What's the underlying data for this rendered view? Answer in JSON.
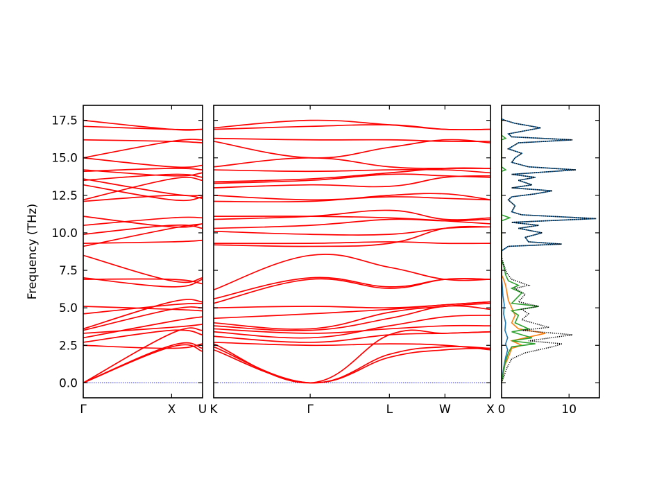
{
  "chart_data": {
    "type": "line",
    "ylabel": "Frequency (THz)",
    "ylim": [
      -1.0,
      18.5
    ],
    "yticks": [
      "0.0",
      "2.5",
      "5.0",
      "7.5",
      "10.0",
      "12.5",
      "15.0",
      "17.5"
    ],
    "ytick_values": [
      0.0,
      2.5,
      5.0,
      7.5,
      10.0,
      12.5,
      15.0,
      17.5
    ],
    "band_segments": [
      {
        "path_labels": [
          "Γ",
          "X",
          "U"
        ],
        "nodes": [
          0,
          1,
          1.35
        ],
        "bands": [
          [
            0.0,
            2.4,
            2.1
          ],
          [
            0.0,
            2.5,
            2.3
          ],
          [
            0.0,
            3.3,
            3.5
          ],
          [
            2.5,
            2.3,
            2.6
          ],
          [
            2.7,
            3.5,
            3.2
          ],
          [
            3.0,
            4.1,
            4.4
          ],
          [
            3.3,
            3.7,
            3.9
          ],
          [
            3.5,
            4.9,
            5.0
          ],
          [
            3.6,
            5.4,
            5.4
          ],
          [
            4.6,
            5.2,
            5.3
          ],
          [
            5.1,
            4.9,
            4.8
          ],
          [
            6.9,
            6.9,
            6.6
          ],
          [
            7.0,
            6.4,
            6.9
          ],
          [
            8.5,
            6.8,
            7.0
          ],
          [
            9.1,
            10.3,
            10.6
          ],
          [
            9.3,
            9.4,
            9.5
          ],
          [
            9.9,
            10.5,
            10.3
          ],
          [
            10.5,
            11.0,
            11.0
          ],
          [
            11.1,
            10.4,
            10.6
          ],
          [
            12.1,
            12.5,
            12.3
          ],
          [
            12.2,
            13.6,
            13.5
          ],
          [
            13.2,
            12.2,
            12.4
          ],
          [
            13.5,
            13.9,
            13.7
          ],
          [
            13.6,
            12.6,
            12.5
          ],
          [
            14.1,
            14.3,
            14.2
          ],
          [
            14.2,
            13.8,
            14.0
          ],
          [
            15.0,
            14.4,
            14.5
          ],
          [
            15.0,
            16.1,
            16.2
          ],
          [
            16.2,
            16.1,
            16.0
          ],
          [
            17.1,
            16.9,
            16.9
          ],
          [
            17.5,
            16.9,
            16.9
          ]
        ]
      },
      {
        "path_labels": [
          "K",
          "Γ",
          "L",
          "W",
          "X"
        ],
        "nodes": [
          0,
          1.06,
          1.93,
          2.54,
          3.04
        ],
        "bands": [
          [
            2.2,
            0.0,
            1.7,
            2.2,
            2.3
          ],
          [
            2.4,
            0.0,
            1.9,
            2.4,
            2.3
          ],
          [
            2.6,
            0.0,
            3.2,
            3.3,
            3.4
          ],
          [
            2.7,
            2.5,
            2.6,
            2.5,
            2.2
          ],
          [
            3.1,
            2.7,
            3.2,
            3.3,
            3.4
          ],
          [
            3.4,
            3.0,
            3.8,
            4.4,
            4.5
          ],
          [
            3.6,
            3.3,
            3.6,
            3.8,
            3.8
          ],
          [
            3.8,
            3.5,
            4.3,
            5.1,
            4.9
          ],
          [
            4.0,
            3.6,
            4.7,
            5.1,
            5.3
          ],
          [
            4.3,
            4.6,
            4.9,
            5.2,
            5.4
          ],
          [
            5.0,
            5.1,
            5.0,
            5.2,
            5.4
          ],
          [
            5.3,
            6.9,
            6.3,
            6.9,
            6.9
          ],
          [
            5.6,
            7.0,
            6.4,
            6.9,
            6.9
          ],
          [
            6.2,
            8.5,
            7.7,
            6.9,
            6.9
          ],
          [
            9.2,
            9.1,
            9.3,
            10.3,
            10.4
          ],
          [
            9.3,
            9.3,
            9.4,
            9.3,
            9.3
          ],
          [
            10.1,
            9.9,
            9.9,
            10.3,
            10.4
          ],
          [
            10.3,
            10.5,
            10.9,
            10.8,
            10.9
          ],
          [
            10.9,
            11.1,
            11.5,
            10.9,
            11.0
          ],
          [
            11.1,
            11.1,
            11.0,
            10.8,
            10.6
          ],
          [
            12.1,
            12.1,
            12.5,
            12.6,
            12.2
          ],
          [
            12.5,
            12.2,
            12.4,
            12.3,
            12.2
          ],
          [
            13.0,
            13.2,
            13.1,
            13.7,
            13.8
          ],
          [
            13.3,
            13.5,
            13.9,
            13.8,
            13.7
          ],
          [
            13.4,
            13.6,
            14.0,
            14.3,
            14.3
          ],
          [
            14.2,
            14.1,
            14.2,
            14.2,
            14.0
          ],
          [
            14.4,
            15.0,
            14.4,
            14.3,
            14.3
          ],
          [
            16.1,
            15.0,
            15.7,
            16.2,
            16.0
          ],
          [
            16.3,
            16.2,
            16.2,
            16.1,
            16.1
          ],
          [
            16.9,
            17.1,
            17.2,
            16.9,
            16.9
          ],
          [
            17.0,
            17.5,
            17.2,
            16.9,
            16.9
          ]
        ]
      }
    ],
    "dos_panel": {
      "xticks": [
        "0",
        "10"
      ],
      "xtick_values": [
        0,
        10
      ],
      "xlim": [
        0,
        14.5
      ],
      "series": [
        {
          "color": "#1f77b4",
          "points": [
            [
              0,
              0
            ],
            [
              0.3,
              1.0
            ],
            [
              0.6,
              1.7
            ],
            [
              0.9,
              2.2
            ],
            [
              0.6,
              2.6
            ],
            [
              0.9,
              3.0
            ],
            [
              0.5,
              3.5
            ],
            [
              0.6,
              4.0
            ],
            [
              0.3,
              4.6
            ],
            [
              0.4,
              5.2
            ],
            [
              0.2,
              5.8
            ],
            [
              0.1,
              6.5
            ],
            [
              0,
              7.0
            ],
            [
              0,
              8.8
            ],
            [
              1.0,
              9.1
            ],
            [
              8.9,
              9.25
            ],
            [
              4.0,
              9.4
            ],
            [
              3.5,
              9.7
            ],
            [
              6.0,
              10.0
            ],
            [
              2.5,
              10.3
            ],
            [
              5.5,
              10.5
            ],
            [
              1.5,
              10.7
            ],
            [
              14.0,
              10.95
            ],
            [
              3.0,
              11.2
            ],
            [
              1.5,
              11.4
            ],
            [
              2.0,
              11.8
            ],
            [
              1.0,
              12.2
            ],
            [
              1.5,
              12.4
            ],
            [
              5.0,
              12.6
            ],
            [
              7.5,
              12.8
            ],
            [
              1.5,
              13.0
            ],
            [
              4.5,
              13.2
            ],
            [
              2.5,
              13.5
            ],
            [
              5.0,
              13.7
            ],
            [
              1.5,
              13.9
            ],
            [
              11.0,
              14.2
            ],
            [
              4.0,
              14.4
            ],
            [
              1.5,
              14.7
            ],
            [
              2.0,
              15.0
            ],
            [
              3.0,
              15.3
            ],
            [
              1.0,
              15.6
            ],
            [
              2.5,
              16.0
            ],
            [
              10.5,
              16.2
            ],
            [
              1.5,
              16.4
            ],
            [
              1.0,
              16.6
            ],
            [
              5.8,
              17.0
            ],
            [
              2.0,
              17.3
            ],
            [
              0.5,
              17.5
            ],
            [
              0,
              17.6
            ]
          ]
        },
        {
          "color": "#ff7f0e",
          "points": [
            [
              0,
              0
            ],
            [
              0.5,
              1.2
            ],
            [
              1.0,
              1.7
            ],
            [
              1.5,
              2.3
            ],
            [
              3.0,
              2.5
            ],
            [
              1.5,
              2.8
            ],
            [
              6.5,
              3.3
            ],
            [
              2.5,
              3.6
            ],
            [
              1.5,
              4.0
            ],
            [
              2.0,
              4.5
            ],
            [
              1.5,
              5.0
            ],
            [
              1.0,
              5.5
            ],
            [
              0.8,
              6.0
            ],
            [
              0.6,
              6.5
            ],
            [
              0.3,
              6.9
            ],
            [
              0,
              7.2
            ],
            [
              0,
              17.6
            ]
          ]
        },
        {
          "color": "#2ca02c",
          "points": [
            [
              0,
              0
            ],
            [
              0.5,
              1.3
            ],
            [
              1.0,
              2.0
            ],
            [
              1.5,
              2.4
            ],
            [
              5.0,
              2.6
            ],
            [
              1.5,
              2.8
            ],
            [
              4.5,
              3.0
            ],
            [
              1.5,
              3.4
            ],
            [
              4.0,
              3.6
            ],
            [
              2.0,
              4.0
            ],
            [
              2.5,
              4.5
            ],
            [
              1.5,
              4.8
            ],
            [
              5.5,
              5.1
            ],
            [
              1.5,
              5.3
            ],
            [
              3.0,
              6.0
            ],
            [
              1.5,
              6.3
            ],
            [
              2.5,
              6.5
            ],
            [
              1.0,
              6.8
            ],
            [
              0.6,
              7.2
            ],
            [
              0.3,
              7.8
            ],
            [
              0,
              8.2
            ],
            [
              0,
              10.8
            ],
            [
              1.2,
              11.0
            ],
            [
              0,
              11.2
            ],
            [
              0,
              14.1
            ],
            [
              0.6,
              14.2
            ],
            [
              0,
              14.4
            ],
            [
              0,
              16.2
            ],
            [
              0.6,
              16.3
            ],
            [
              0,
              16.5
            ],
            [
              0,
              17.6
            ]
          ]
        },
        {
          "color": "#000000",
          "dashed": true,
          "points": [
            [
              0,
              0
            ],
            [
              0.8,
              1.0
            ],
            [
              1.5,
              1.6
            ],
            [
              3.5,
              2.0
            ],
            [
              7.5,
              2.4
            ],
            [
              9.0,
              2.6
            ],
            [
              4.0,
              2.8
            ],
            [
              10.5,
              3.2
            ],
            [
              3.0,
              3.5
            ],
            [
              7.0,
              3.7
            ],
            [
              3.0,
              4.2
            ],
            [
              4.0,
              4.6
            ],
            [
              3.0,
              4.9
            ],
            [
              5.5,
              5.1
            ],
            [
              2.5,
              5.4
            ],
            [
              3.5,
              5.9
            ],
            [
              2.0,
              6.3
            ],
            [
              4.0,
              6.5
            ],
            [
              1.5,
              6.9
            ],
            [
              0.8,
              7.3
            ],
            [
              0.3,
              7.9
            ],
            [
              0,
              8.4
            ],
            [
              0,
              8.8
            ],
            [
              1.0,
              9.1
            ],
            [
              8.9,
              9.25
            ],
            [
              4.0,
              9.4
            ],
            [
              3.5,
              9.7
            ],
            [
              6.0,
              10.0
            ],
            [
              2.5,
              10.3
            ],
            [
              5.5,
              10.5
            ],
            [
              1.5,
              10.7
            ],
            [
              14.0,
              10.95
            ],
            [
              3.0,
              11.2
            ],
            [
              1.5,
              11.4
            ],
            [
              2.0,
              11.8
            ],
            [
              1.0,
              12.2
            ],
            [
              1.5,
              12.4
            ],
            [
              5.0,
              12.6
            ],
            [
              7.5,
              12.8
            ],
            [
              1.5,
              13.0
            ],
            [
              4.5,
              13.2
            ],
            [
              2.5,
              13.5
            ],
            [
              5.0,
              13.7
            ],
            [
              1.5,
              13.9
            ],
            [
              11.0,
              14.2
            ],
            [
              4.0,
              14.4
            ],
            [
              1.5,
              14.7
            ],
            [
              2.0,
              15.0
            ],
            [
              3.0,
              15.3
            ],
            [
              1.0,
              15.6
            ],
            [
              2.5,
              16.0
            ],
            [
              10.5,
              16.2
            ],
            [
              1.5,
              16.4
            ],
            [
              1.0,
              16.6
            ],
            [
              5.8,
              17.0
            ],
            [
              2.0,
              17.3
            ],
            [
              0.5,
              17.5
            ],
            [
              0,
              17.6
            ]
          ]
        }
      ]
    }
  }
}
